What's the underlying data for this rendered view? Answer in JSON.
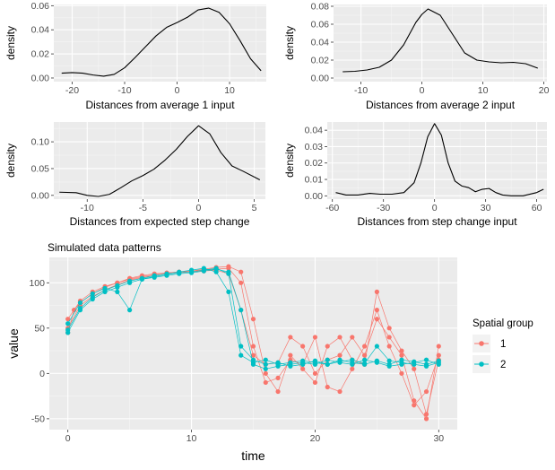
{
  "chart_data": [
    {
      "type": "line",
      "title": "",
      "xlabel": "Distances from average 1 input",
      "ylabel": "density",
      "xlim": [
        -23.5,
        17
      ],
      "ylim": [
        -0.003,
        0.061
      ],
      "x_ticks": [
        -20,
        -10,
        0,
        10
      ],
      "y_ticks": [
        0.0,
        0.02,
        0.04,
        0.06
      ],
      "y_tick_labels": [
        "0.00",
        "0.02",
        "0.04",
        "0.06"
      ],
      "grid": true,
      "series": [
        {
          "x": [
            -22,
            -20,
            -18,
            -16,
            -14,
            -12,
            -10,
            -8,
            -6,
            -4,
            -2,
            0,
            2,
            4,
            6,
            8,
            10,
            12,
            14,
            16
          ],
          "y": [
            0.004,
            0.0045,
            0.004,
            0.0025,
            0.0015,
            0.003,
            0.0085,
            0.017,
            0.026,
            0.035,
            0.042,
            0.046,
            0.0505,
            0.0565,
            0.058,
            0.0545,
            0.045,
            0.031,
            0.016,
            0.006
          ]
        }
      ]
    },
    {
      "type": "line",
      "title": "",
      "xlabel": "Distances from average 2 input",
      "ylabel": "density",
      "xlim": [
        -14.5,
        20.5
      ],
      "ylim": [
        -0.004,
        0.082
      ],
      "x_ticks": [
        -10,
        0,
        10,
        20
      ],
      "y_ticks": [
        0.0,
        0.02,
        0.04,
        0.06,
        0.08
      ],
      "y_tick_labels": [
        "0.00",
        "0.02",
        "0.04",
        "0.06",
        "0.08"
      ],
      "grid": true,
      "series": [
        {
          "x": [
            -13,
            -11,
            -9,
            -7,
            -5,
            -3,
            -1,
            0,
            1,
            3,
            5,
            7,
            9,
            11,
            13,
            15,
            17,
            19
          ],
          "y": [
            0.007,
            0.0075,
            0.009,
            0.012,
            0.02,
            0.037,
            0.062,
            0.071,
            0.077,
            0.07,
            0.049,
            0.028,
            0.02,
            0.018,
            0.017,
            0.0175,
            0.016,
            0.011
          ]
        }
      ]
    },
    {
      "type": "line",
      "title": "",
      "xlabel": "Distances from expected step change",
      "ylabel": "density",
      "xlim": [
        -13,
        6
      ],
      "ylim": [
        -0.007,
        0.137
      ],
      "x_ticks": [
        -10,
        -5,
        0,
        5
      ],
      "y_ticks": [
        0.0,
        0.05,
        0.1
      ],
      "y_tick_labels": [
        "0.00",
        "0.05",
        "0.10"
      ],
      "grid": true,
      "series": [
        {
          "x": [
            -12.5,
            -11,
            -10,
            -9,
            -8,
            -7,
            -6,
            -5,
            -4,
            -3,
            -2,
            -1,
            0,
            1,
            2,
            3,
            4,
            5.5
          ],
          "y": [
            0.006,
            0.005,
            0.0,
            -0.002,
            0.002,
            0.014,
            0.027,
            0.037,
            0.049,
            0.066,
            0.086,
            0.11,
            0.13,
            0.115,
            0.08,
            0.055,
            0.045,
            0.029
          ]
        }
      ]
    },
    {
      "type": "line",
      "title": "",
      "xlabel": "Distances from step change input",
      "ylabel": "density",
      "xlim": [
        -63,
        66
      ],
      "ylim": [
        -0.002,
        0.045
      ],
      "x_ticks": [
        -60,
        -30,
        0,
        30,
        60
      ],
      "y_ticks": [
        0.0,
        0.01,
        0.02,
        0.03,
        0.04
      ],
      "y_tick_labels": [
        "0.00",
        "0.01",
        "0.02",
        "0.03",
        "0.04"
      ],
      "grid": true,
      "series": [
        {
          "x": [
            -58,
            -52,
            -45,
            -38,
            -32,
            -25,
            -18,
            -12,
            -8,
            -4,
            0,
            4,
            8,
            12,
            16,
            20,
            24,
            28,
            32,
            36,
            40,
            45,
            52,
            60,
            64
          ],
          "y": [
            0.002,
            0.0005,
            0.0005,
            0.0015,
            0.001,
            0.001,
            0.002,
            0.008,
            0.02,
            0.036,
            0.044,
            0.037,
            0.02,
            0.009,
            0.006,
            0.005,
            0.0025,
            0.004,
            0.0045,
            0.002,
            0.0005,
            0.0,
            0.0,
            0.002,
            0.004
          ]
        }
      ]
    },
    {
      "type": "line",
      "title": "Simulated data patterns",
      "xlabel": "time",
      "ylabel": "value",
      "xlim": [
        -1.5,
        31.5
      ],
      "ylim": [
        -62,
        128
      ],
      "x_ticks": [
        0,
        10,
        20,
        30
      ],
      "y_ticks": [
        -50,
        0,
        50,
        100
      ],
      "grid": true,
      "legend": {
        "title": "Spatial group",
        "position": "right",
        "entries": [
          "1",
          "2"
        ]
      },
      "series": [
        {
          "name": "1",
          "color": "#F8766D",
          "x": [
            0,
            0.5,
            1,
            2,
            3,
            4,
            5,
            6,
            7,
            8,
            9,
            10,
            11,
            12,
            13,
            14,
            15,
            16,
            17,
            18,
            19,
            20,
            21,
            22,
            23,
            24,
            25,
            26,
            27,
            28,
            29,
            30
          ],
          "y": [
            45,
            70,
            78,
            88,
            95,
            100,
            105,
            108,
            110,
            111,
            112,
            112,
            113,
            114,
            110,
            70,
            20,
            10,
            12,
            40,
            30,
            0,
            15,
            20,
            40,
            20,
            60,
            40,
            20,
            -30,
            -50,
            30
          ]
        },
        {
          "name": "1",
          "color": "#F8766D",
          "x": [
            0,
            1,
            2,
            3,
            4,
            5,
            6,
            7,
            8,
            9,
            10,
            11,
            12,
            13,
            14,
            15,
            16,
            17,
            18,
            19,
            20,
            21,
            22,
            23,
            24,
            25,
            26,
            27,
            28,
            29,
            30
          ],
          "y": [
            50,
            75,
            85,
            92,
            98,
            103,
            106,
            108,
            110,
            112,
            113,
            114,
            115,
            116,
            100,
            30,
            -10,
            -5,
            15,
            10,
            40,
            -15,
            -20,
            5,
            30,
            70,
            30,
            0,
            -35,
            -20,
            20
          ]
        },
        {
          "name": "1",
          "color": "#F8766D",
          "x": [
            0,
            1,
            2,
            3,
            4,
            5,
            6,
            7,
            8,
            9,
            10,
            11,
            12,
            13,
            14,
            15,
            16,
            17,
            18,
            19,
            20,
            21,
            22,
            23,
            24,
            25,
            26,
            27,
            28,
            29,
            30
          ],
          "y": [
            60,
            80,
            90,
            96,
            100,
            104,
            107,
            109,
            111,
            112,
            113,
            115,
            117,
            118,
            112,
            60,
            0,
            -20,
            20,
            5,
            -10,
            30,
            40,
            15,
            10,
            90,
            50,
            25,
            5,
            -45,
            15
          ]
        },
        {
          "name": "2",
          "color": "#00BFC4",
          "x": [
            0,
            1,
            2,
            3,
            4,
            5,
            6,
            7,
            8,
            9,
            10,
            11,
            12,
            13,
            14,
            15,
            16,
            17,
            18,
            19,
            20,
            21,
            22,
            23,
            24,
            25,
            26,
            27,
            28,
            29,
            30
          ],
          "y": [
            45,
            70,
            82,
            90,
            95,
            100,
            104,
            106,
            108,
            110,
            111,
            113,
            115,
            112,
            70,
            10,
            5,
            8,
            10,
            12,
            10,
            15,
            12,
            10,
            15,
            12,
            8,
            10,
            12,
            15,
            10
          ]
        },
        {
          "name": "2",
          "color": "#00BFC4",
          "x": [
            0,
            1,
            2,
            3,
            4,
            5,
            6,
            7,
            8,
            9,
            10,
            11,
            12,
            13,
            14,
            15,
            16,
            17,
            18,
            19,
            20,
            21,
            22,
            23,
            24,
            25,
            26,
            27,
            28,
            29,
            30
          ],
          "y": [
            55,
            78,
            88,
            94,
            90,
            70,
            104,
            107,
            109,
            111,
            112,
            114,
            116,
            110,
            30,
            15,
            10,
            12,
            8,
            10,
            14,
            10,
            13,
            15,
            11,
            30,
            14,
            12,
            10,
            8,
            12
          ]
        },
        {
          "name": "2",
          "color": "#00BFC4",
          "x": [
            0,
            1,
            2,
            3,
            4,
            5,
            6,
            7,
            8,
            9,
            10,
            11,
            12,
            13,
            14,
            15,
            16,
            17,
            18,
            19,
            20,
            21,
            22,
            23,
            24,
            25,
            26,
            27,
            28,
            29,
            30
          ],
          "y": [
            48,
            72,
            84,
            92,
            97,
            102,
            105,
            108,
            110,
            112,
            114,
            116,
            112,
            90,
            20,
            12,
            15,
            10,
            12,
            14,
            12,
            10,
            15,
            12,
            10,
            14,
            10,
            15,
            13,
            10,
            14
          ]
        }
      ]
    }
  ]
}
